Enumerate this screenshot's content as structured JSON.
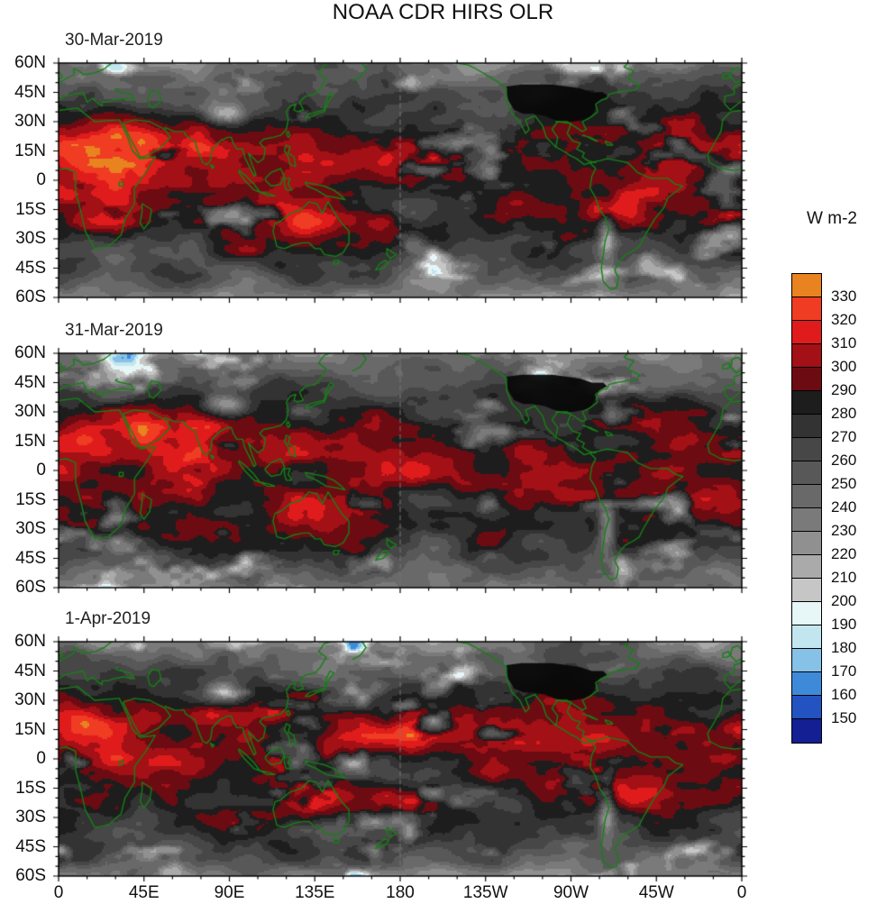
{
  "chart_data": {
    "type": "heatmap",
    "title": "NOAA CDR HIRS OLR",
    "units": "W m-2",
    "panels": [
      "30-Mar-2019",
      "31-Mar-2019",
      "1-Apr-2019"
    ],
    "lat_ticks": [
      "60N",
      "45N",
      "30N",
      "15N",
      "0",
      "15S",
      "30S",
      "45S",
      "60S"
    ],
    "lon_ticks": [
      "0",
      "45E",
      "90E",
      "135E",
      "180",
      "135W",
      "90W",
      "45W",
      "0"
    ],
    "lat_range_deg": [
      -60,
      60
    ],
    "lon_range_deg": [
      0,
      360
    ],
    "colorbar_levels": [
      150,
      160,
      170,
      180,
      190,
      200,
      210,
      220,
      230,
      240,
      250,
      260,
      270,
      280,
      290,
      300,
      310,
      320,
      330
    ],
    "colorbar_colors": [
      "#141f94",
      "#2353c0",
      "#3f8ad8",
      "#86c1e8",
      "#c2e6ef",
      "#e7f6f6",
      "#c6c6c6",
      "#aaaaaa",
      "#909090",
      "#7a7a7a",
      "#696969",
      "#585858",
      "#474747",
      "#333333",
      "#1d1d1d",
      "#6d0b12",
      "#a31016",
      "#e01b1b",
      "#ef3c22",
      "#e8831f"
    ],
    "coastline_color": "#168016",
    "legend_position": "right",
    "grid": "dashed line at 180 longitude"
  }
}
